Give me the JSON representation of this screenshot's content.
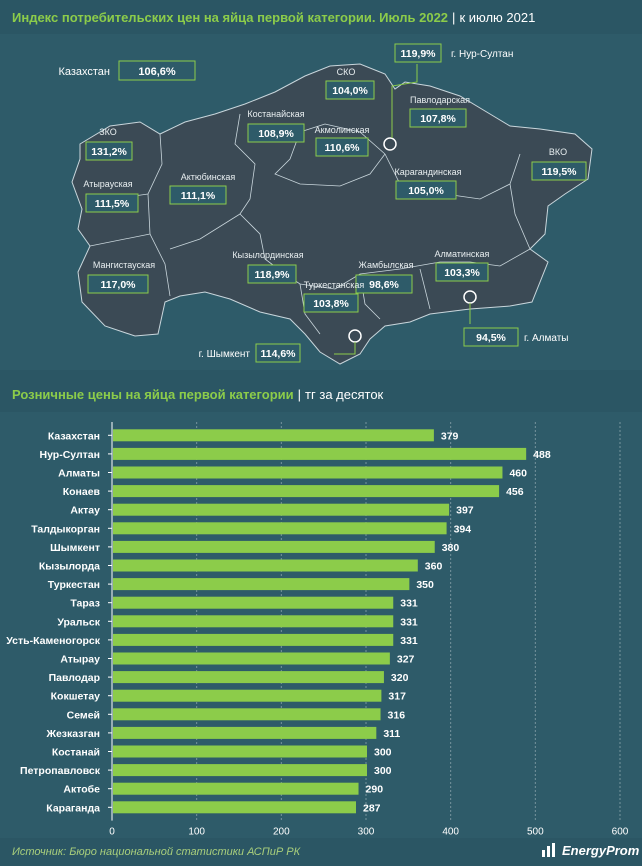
{
  "header": {
    "map_title": "Индекс потребительских цен на яйца первой категории. Июль 2022",
    "map_subtitle": "к июлю 2021",
    "chart_title": "Розничные цены на яйца первой категории",
    "chart_subtitle": "тг за десяток"
  },
  "map": {
    "country": {
      "label": "Казахстан",
      "value": "106,6%"
    },
    "regions": [
      {
        "label": "ЗКО",
        "value": "131,2%"
      },
      {
        "label": "Атырауская",
        "value": "111,5%"
      },
      {
        "label": "Мангистауская",
        "value": "117,0%"
      },
      {
        "label": "Актюбинская",
        "value": "111,1%"
      },
      {
        "label": "Костанайская",
        "value": "108,9%"
      },
      {
        "label": "СКО",
        "value": "104,0%"
      },
      {
        "label": "Акмолинская",
        "value": "110,6%"
      },
      {
        "label": "Павлодарская",
        "value": "107,8%"
      },
      {
        "label": "ВКО",
        "value": "119,5%"
      },
      {
        "label": "Карагандинская",
        "value": "105,0%"
      },
      {
        "label": "Кызылординская",
        "value": "118,9%"
      },
      {
        "label": "Жамбылская",
        "value": "98,6%"
      },
      {
        "label": "Алматинская",
        "value": "103,3%"
      },
      {
        "label": "Туркестанская",
        "value": "103,8%"
      }
    ],
    "cities": [
      {
        "label": "г. Нур-Султан",
        "value": "119,9%"
      },
      {
        "label": "г. Алматы",
        "value": "94,5%"
      },
      {
        "label": "г. Шымкент",
        "value": "114,6%"
      }
    ]
  },
  "chart_data": {
    "type": "bar",
    "orientation": "horizontal",
    "title": "Розничные цены на яйца первой категории",
    "subtitle": "тг за десяток",
    "categories": [
      "Казахстан",
      "Нур-Султан",
      "Алматы",
      "Конаев",
      "Актау",
      "Талдыкорган",
      "Шымкент",
      "Кызылорда",
      "Туркестан",
      "Тараз",
      "Уральск",
      "Усть-Каменогорск",
      "Атырау",
      "Павлодар",
      "Кокшетау",
      "Семей",
      "Жезказган",
      "Костанай",
      "Петропавловск",
      "Актобе",
      "Караганда"
    ],
    "values": [
      379,
      488,
      460,
      456,
      397,
      394,
      380,
      360,
      350,
      331,
      331,
      331,
      327,
      320,
      317,
      316,
      311,
      300,
      300,
      290,
      287
    ],
    "xlim": [
      0,
      600
    ],
    "xticks": [
      0,
      100,
      200,
      300,
      400,
      500,
      600
    ],
    "grid": true,
    "bar_color": "#8ccc4a"
  },
  "footer": {
    "source": "Источник: Бюро национальной статистики АСПиР РК",
    "logo": "EnergyProm"
  },
  "colors": {
    "background": "#2b5664",
    "map_fill": "#3a4a55",
    "accent": "#8ccc4a"
  }
}
